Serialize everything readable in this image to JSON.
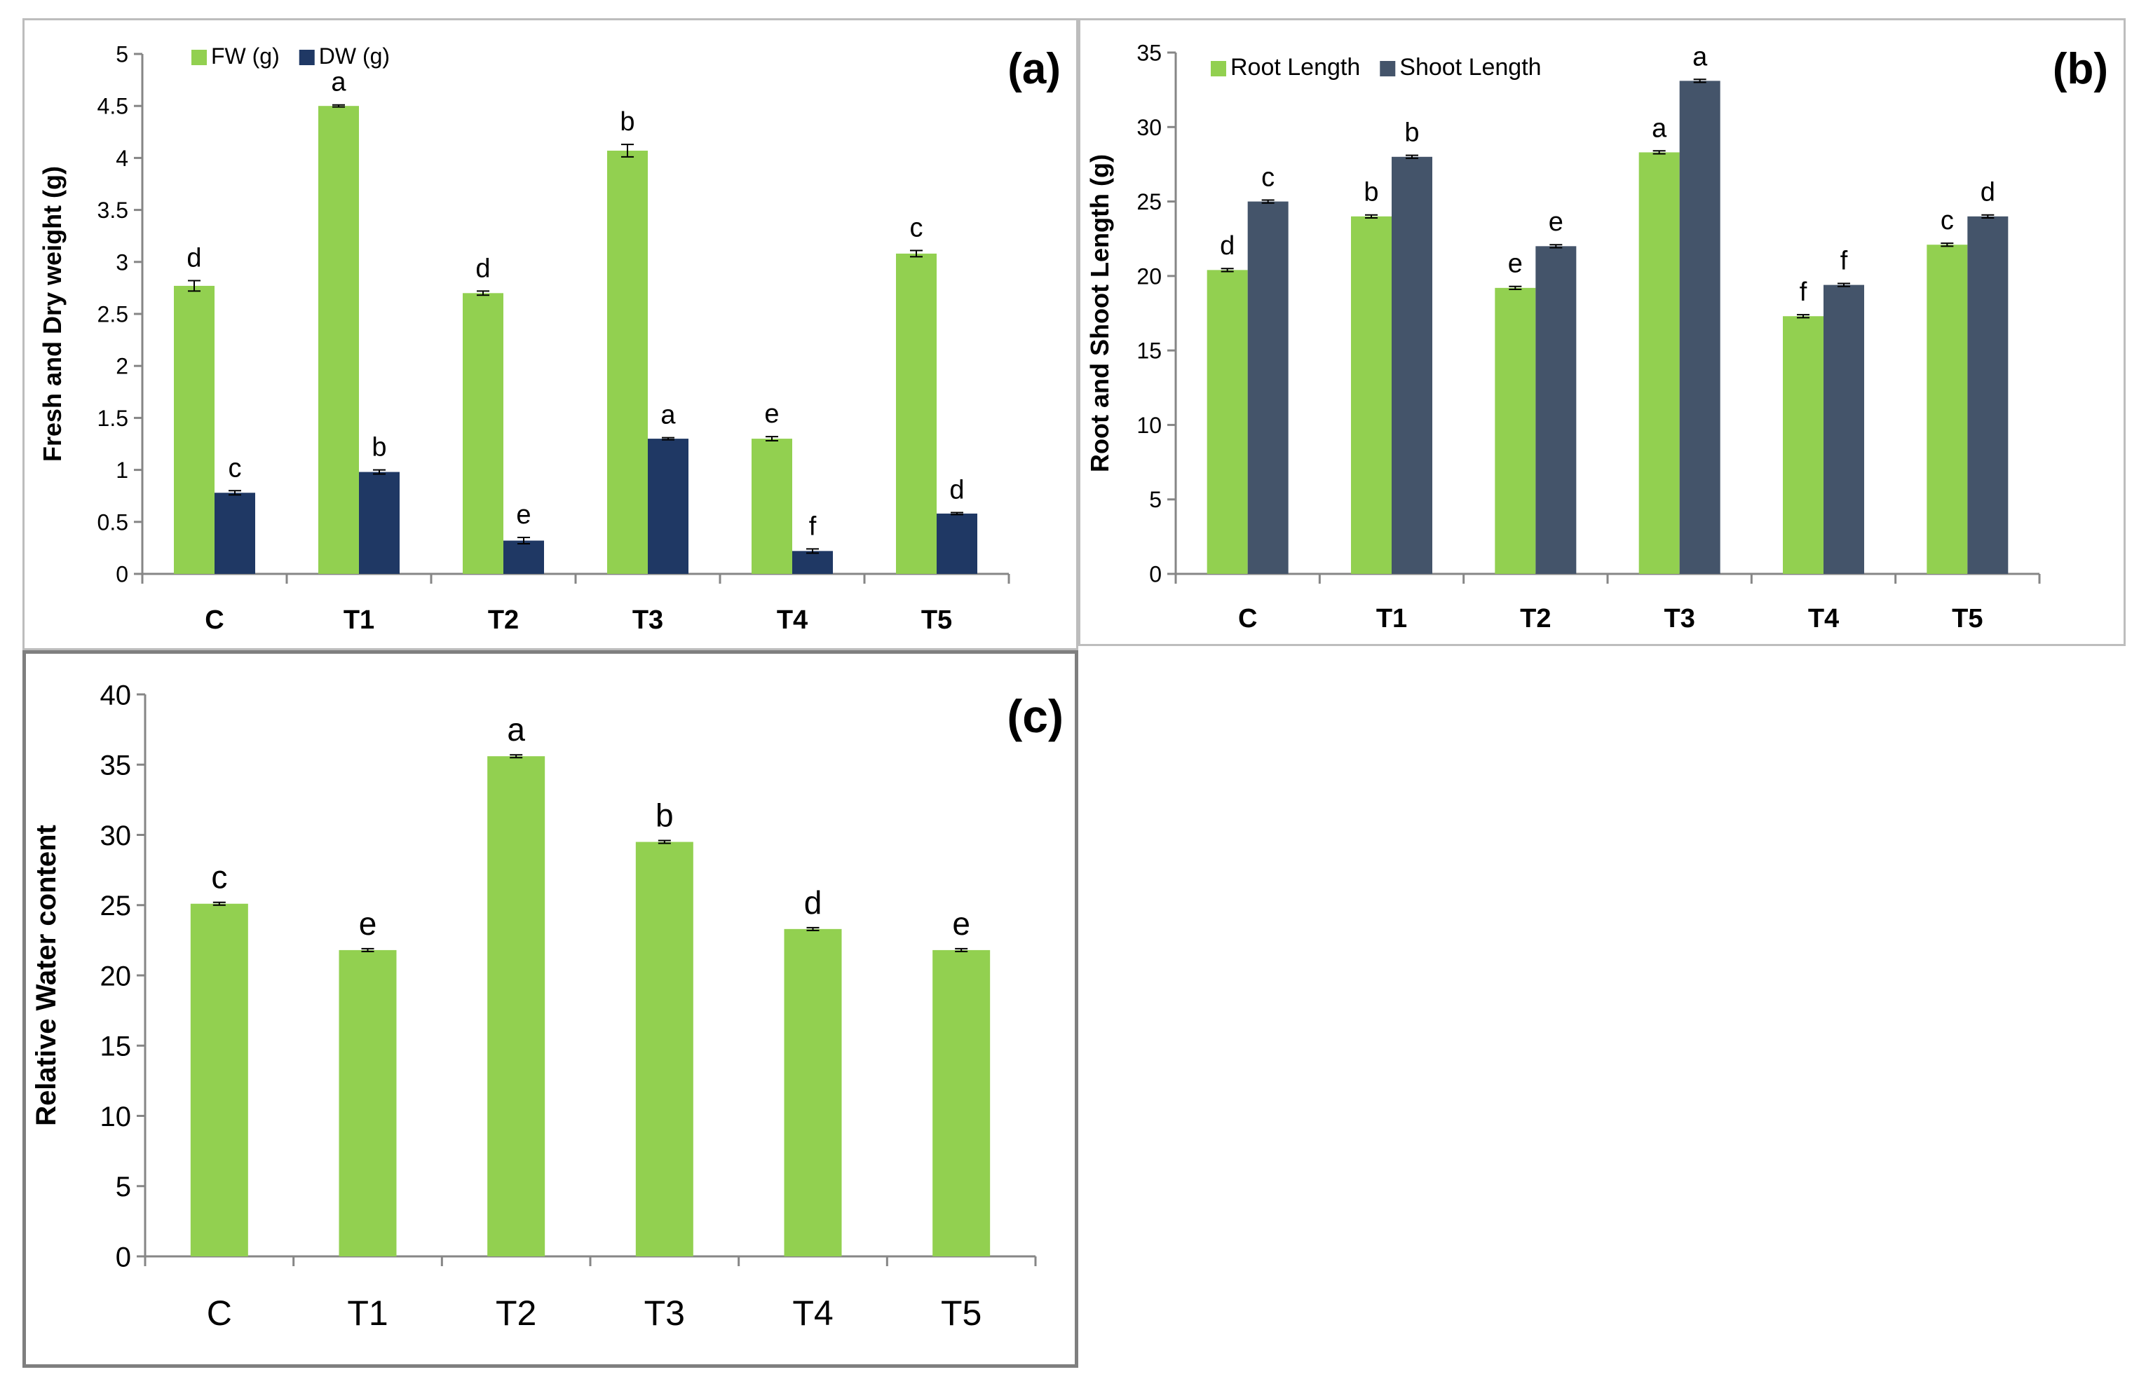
{
  "chart_data": [
    {
      "id": "a",
      "type": "bar",
      "panel_label": "(a)",
      "categories": [
        "C",
        "T1",
        "T2",
        "T3",
        "T4",
        "T5"
      ],
      "ylabel": "Fresh and Dry weight (g)",
      "xlabel": "",
      "ylim": [
        0,
        5
      ],
      "yticks": [
        0,
        0.5,
        1,
        1.5,
        2,
        2.5,
        3,
        3.5,
        4,
        4.5,
        5
      ],
      "ytick_labels": [
        "0",
        "0.5",
        "1",
        "1.5",
        "2",
        "2.5",
        "3",
        "3.5",
        "4",
        "4.5",
        "5"
      ],
      "legend_position": "top-left",
      "series": [
        {
          "name": "FW (g)",
          "color": "#92d050",
          "values": [
            2.77,
            4.5,
            2.7,
            4.07,
            1.3,
            3.08
          ],
          "errors": [
            0.05,
            0.01,
            0.02,
            0.06,
            0.02,
            0.03
          ],
          "labels": [
            "d",
            "a",
            "d",
            "b",
            "e",
            "c"
          ]
        },
        {
          "name": "DW (g)",
          "color": "#1f3864",
          "values": [
            0.78,
            0.98,
            0.32,
            1.3,
            0.22,
            0.58
          ],
          "errors": [
            0.02,
            0.02,
            0.03,
            0.01,
            0.02,
            0.01
          ],
          "labels": [
            "c",
            "b",
            "e",
            "a",
            "f",
            "d"
          ]
        }
      ]
    },
    {
      "id": "b",
      "type": "bar",
      "panel_label": "(b)",
      "categories": [
        "C",
        "T1",
        "T2",
        "T3",
        "T4",
        "T5"
      ],
      "ylabel": "Root and Shoot Length (g)",
      "xlabel": "",
      "ylim": [
        0,
        35
      ],
      "yticks": [
        0,
        5,
        10,
        15,
        20,
        25,
        30,
        35
      ],
      "ytick_labels": [
        "0",
        "5",
        "10",
        "15",
        "20",
        "25",
        "30",
        "35"
      ],
      "legend_position": "top-left",
      "series": [
        {
          "name": "Root Length",
          "color": "#92d050",
          "values": [
            20.4,
            24.0,
            19.2,
            28.3,
            17.3,
            22.1
          ],
          "errors": [
            0.1,
            0.1,
            0.1,
            0.1,
            0.1,
            0.1
          ],
          "labels": [
            "d",
            "b",
            "e",
            "a",
            "f",
            "c"
          ]
        },
        {
          "name": "Shoot Length",
          "color": "#44546a",
          "values": [
            25.0,
            28.0,
            22.0,
            33.1,
            19.4,
            24.0
          ],
          "errors": [
            0.1,
            0.1,
            0.1,
            0.1,
            0.1,
            0.1
          ],
          "labels": [
            "c",
            "b",
            "e",
            "a",
            "f",
            "d"
          ]
        }
      ]
    },
    {
      "id": "c",
      "type": "bar",
      "panel_label": "(c)",
      "categories": [
        "C",
        "T1",
        "T2",
        "T3",
        "T4",
        "T5"
      ],
      "ylabel": "Relative Water content",
      "xlabel": "",
      "ylim": [
        0,
        40
      ],
      "yticks": [
        0,
        5,
        10,
        15,
        20,
        25,
        30,
        35,
        40
      ],
      "ytick_labels": [
        "0",
        "5",
        "10",
        "15",
        "20",
        "25",
        "30",
        "35",
        "40"
      ],
      "legend_position": "none",
      "series": [
        {
          "name": "Relative Water content",
          "color": "#92d050",
          "values": [
            25.1,
            21.8,
            35.6,
            29.5,
            23.3,
            21.8
          ],
          "errors": [
            0.1,
            0.1,
            0.1,
            0.1,
            0.1,
            0.1
          ],
          "labels": [
            "c",
            "e",
            "a",
            "b",
            "d",
            "e"
          ]
        }
      ]
    }
  ]
}
